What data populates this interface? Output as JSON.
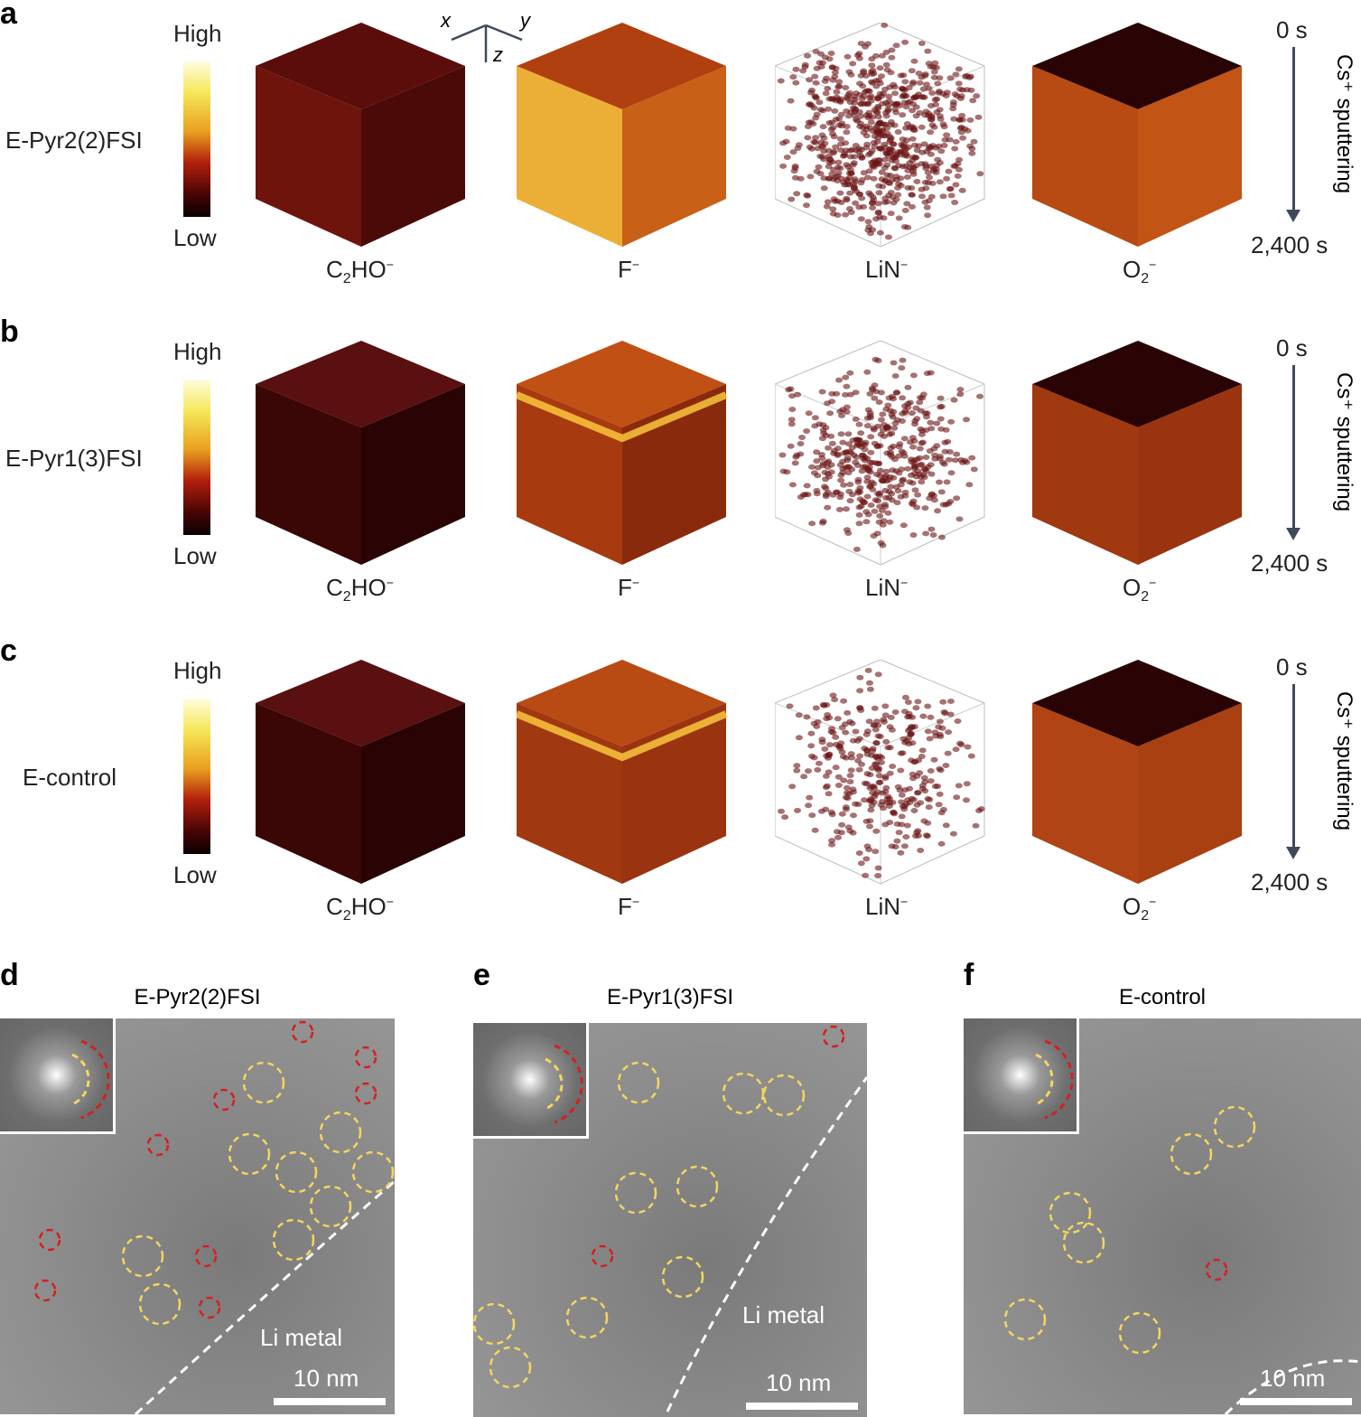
{
  "rows": [
    {
      "label": "a",
      "sample": "E-Pyr2(2)FSI"
    },
    {
      "label": "b",
      "sample": "E-Pyr1(3)FSI"
    },
    {
      "label": "c",
      "sample": "E-control"
    }
  ],
  "colorbar": {
    "high": "High",
    "low": "Low"
  },
  "species": [
    {
      "base": "C",
      "sub": "2",
      "rest": "HO",
      "sup": "−"
    },
    {
      "base": "F",
      "sub": "",
      "rest": "",
      "sup": "−"
    },
    {
      "base": "LiN",
      "sub": "",
      "rest": "",
      "sup": "−"
    },
    {
      "base": "O",
      "sub": "2",
      "rest": "",
      "sup": "−"
    }
  ],
  "axes": {
    "x": "x",
    "y": "y",
    "z": "z"
  },
  "time": {
    "start": "0 s",
    "end": "2,400 s",
    "process": "Cs⁺ sputtering"
  },
  "tem": [
    {
      "label": "d",
      "title": "E-Pyr2(2)FSI",
      "region": "Li metal",
      "scale": "10 nm"
    },
    {
      "label": "e",
      "title": "E-Pyr1(3)FSI",
      "region": "Li metal",
      "scale": "10 nm"
    },
    {
      "label": "f",
      "title": "E-control",
      "region": "",
      "scale": "10 nm"
    }
  ],
  "colors": {
    "arrow": "#3e4a5c",
    "crystal_yellow": "#f5d560",
    "crystal_red": "#d42020"
  }
}
